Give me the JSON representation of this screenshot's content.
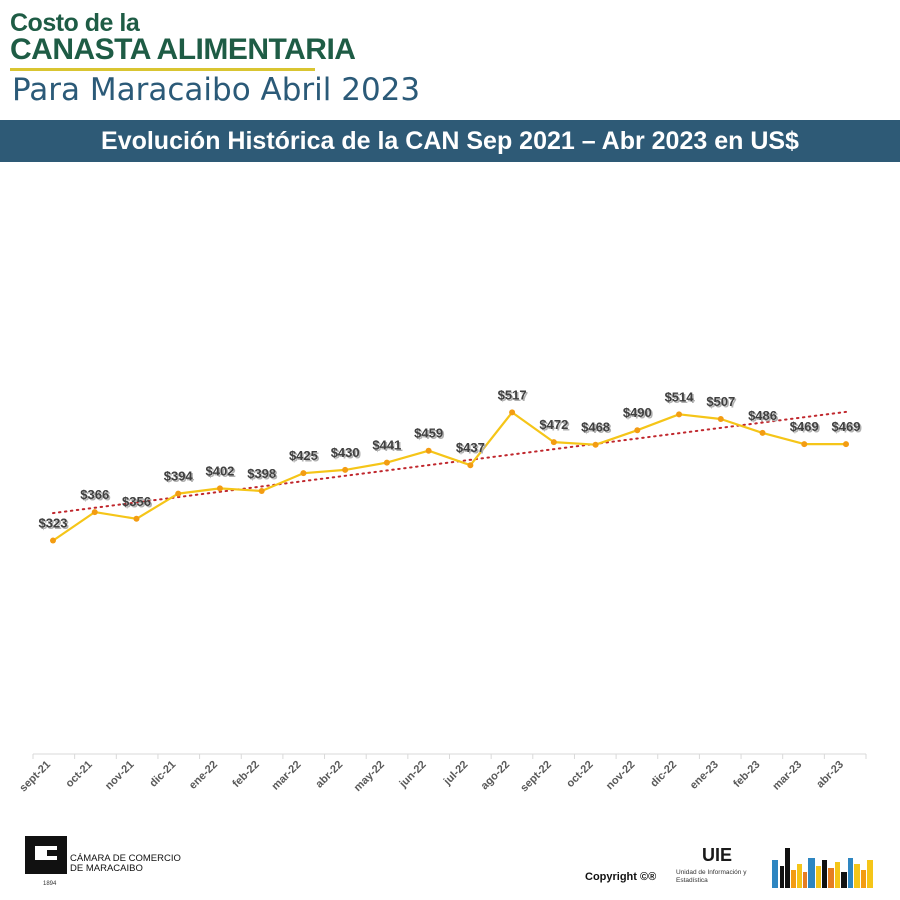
{
  "header": {
    "line1": "Costo de la",
    "line2": "CANASTA ALIMENTARIA",
    "subtitle": "Para Maracaibo Abril 2023",
    "banner": "Evolución Histórica de la CAN Sep 2021 – Abr 2023 en US$"
  },
  "chart_data": {
    "type": "line",
    "title": "Evolución Histórica de la CAN Sep 2021 – Abr 2023 en US$",
    "categories": [
      "sept-21",
      "oct-21",
      "nov-21",
      "dic-21",
      "ene-22",
      "feb-22",
      "mar-22",
      "abr-22",
      "may-22",
      "jun-22",
      "jul-22",
      "ago-22",
      "sept-22",
      "oct-22",
      "nov-22",
      "dic-22",
      "ene-23",
      "feb-23",
      "mar-23",
      "abr-23"
    ],
    "series": [
      {
        "values": [
          323,
          366,
          356,
          394,
          402,
          398,
          425,
          430,
          441,
          459,
          437,
          517,
          472,
          468,
          490,
          514,
          507,
          486,
          469,
          469
        ],
        "labels": [
          "$323",
          "$366",
          "$356",
          "$394",
          "$402",
          "$398",
          "$425",
          "$430",
          "$441",
          "$459",
          "$437",
          "$517",
          "$472",
          "$468",
          "$490",
          "$514",
          "$507",
          "$486",
          "$469",
          "$469"
        ],
        "color": "#f5c518",
        "marker_color": "#f39c12"
      }
    ],
    "trendline": {
      "type": "linear",
      "style": "dotted",
      "color": "#c0272d"
    },
    "xlabel": "",
    "ylabel": "",
    "ylim": [
      0,
      900
    ],
    "grid": false,
    "legend": "none"
  },
  "footer": {
    "org_line1": "CÁMARA DE COMERCIO",
    "org_line2": "DE MARACAIBO",
    "logo_year": "1894",
    "copyright": "Copyright ©®",
    "uie_title": "UIE",
    "uie_sub": "Unidad de Información y Estadística"
  }
}
